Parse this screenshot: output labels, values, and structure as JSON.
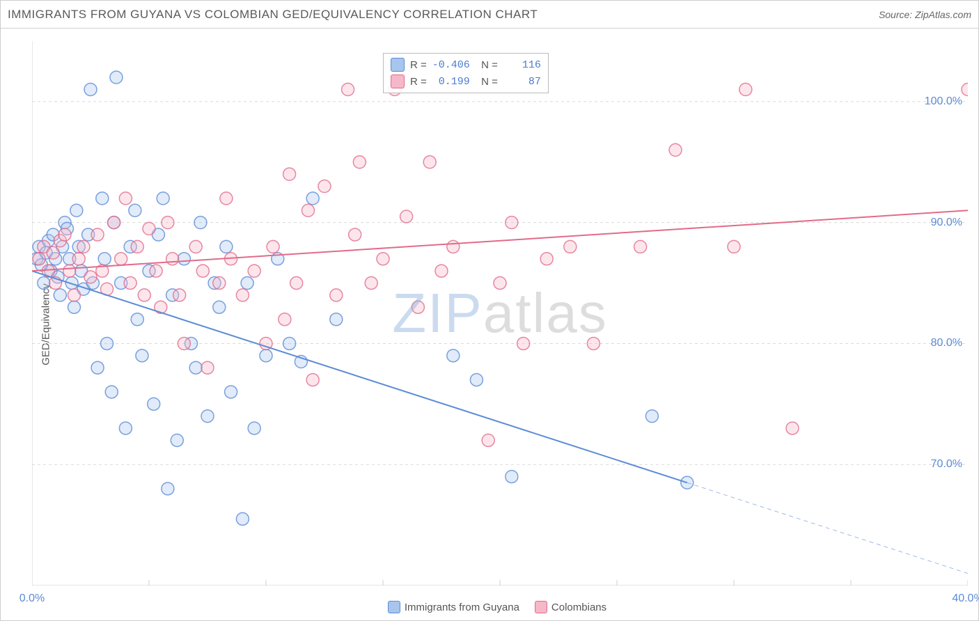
{
  "title": "IMMIGRANTS FROM GUYANA VS COLOMBIAN GED/EQUIVALENCY CORRELATION CHART",
  "source": "Source: ZipAtlas.com",
  "y_axis_label": "GED/Equivalency",
  "watermark": {
    "zip": "ZIP",
    "atlas": "atlas"
  },
  "chart": {
    "type": "scatter",
    "background_color": "#ffffff",
    "grid_color": "#d9d9d9",
    "axis_color": "#cfcfcf",
    "tick_label_color": "#5b8bd6",
    "axis_label_color": "#555555",
    "xlim": [
      0,
      40
    ],
    "ylim": [
      60,
      105
    ],
    "x_ticks": [
      0,
      40
    ],
    "x_tick_labels": [
      "0.0%",
      "40.0%"
    ],
    "x_minor_ticks": [
      5,
      10,
      15,
      20,
      25,
      30,
      35
    ],
    "y_ticks": [
      70,
      80,
      90,
      100
    ],
    "y_tick_labels": [
      "70.0%",
      "80.0%",
      "90.0%",
      "100.0%"
    ],
    "marker_radius": 9,
    "marker_fill_opacity": 0.35,
    "marker_stroke_width": 1.5,
    "line_width": 2,
    "font_size_title": 17,
    "font_size_labels": 15,
    "font_size_ticks": 16,
    "series": [
      {
        "id": "guyana",
        "label": "Immigrants from Guyana",
        "color": "#5b8bd6",
        "fill": "#a8c5ee",
        "stroke": "#5b8bd6",
        "R": "-0.406",
        "N": "116",
        "trend": {
          "x1": 0,
          "y1": 86,
          "x2": 28,
          "y2": 68.5,
          "dash_x2": 40,
          "dash_y2": 61
        },
        "points": [
          [
            0.2,
            87
          ],
          [
            0.3,
            88
          ],
          [
            0.4,
            86.5
          ],
          [
            0.5,
            85
          ],
          [
            0.6,
            87.5
          ],
          [
            0.7,
            88.5
          ],
          [
            0.8,
            86
          ],
          [
            0.9,
            89
          ],
          [
            1.0,
            87
          ],
          [
            1.1,
            85.5
          ],
          [
            1.2,
            84
          ],
          [
            1.3,
            88
          ],
          [
            1.4,
            90
          ],
          [
            1.5,
            89.5
          ],
          [
            1.6,
            87
          ],
          [
            1.7,
            85
          ],
          [
            1.8,
            83
          ],
          [
            1.9,
            91
          ],
          [
            2.0,
            88
          ],
          [
            2.1,
            86
          ],
          [
            2.2,
            84.5
          ],
          [
            2.4,
            89
          ],
          [
            2.5,
            101
          ],
          [
            2.6,
            85
          ],
          [
            2.8,
            78
          ],
          [
            3.0,
            92
          ],
          [
            3.1,
            87
          ],
          [
            3.2,
            80
          ],
          [
            3.4,
            76
          ],
          [
            3.5,
            90
          ],
          [
            3.6,
            102
          ],
          [
            3.8,
            85
          ],
          [
            4.0,
            73
          ],
          [
            4.2,
            88
          ],
          [
            4.4,
            91
          ],
          [
            4.5,
            82
          ],
          [
            4.7,
            79
          ],
          [
            5.0,
            86
          ],
          [
            5.2,
            75
          ],
          [
            5.4,
            89
          ],
          [
            5.6,
            92
          ],
          [
            5.8,
            68
          ],
          [
            6.0,
            84
          ],
          [
            6.2,
            72
          ],
          [
            6.5,
            87
          ],
          [
            6.8,
            80
          ],
          [
            7.0,
            78
          ],
          [
            7.2,
            90
          ],
          [
            7.5,
            74
          ],
          [
            7.8,
            85
          ],
          [
            8.0,
            83
          ],
          [
            8.3,
            88
          ],
          [
            8.5,
            76
          ],
          [
            9.0,
            65.5
          ],
          [
            9.2,
            85
          ],
          [
            9.5,
            73
          ],
          [
            10.0,
            79
          ],
          [
            10.5,
            87
          ],
          [
            11.0,
            80
          ],
          [
            11.5,
            78.5
          ],
          [
            12.0,
            92
          ],
          [
            13.0,
            82
          ],
          [
            18.0,
            79
          ],
          [
            19.0,
            77
          ],
          [
            20.5,
            69
          ],
          [
            26.5,
            74
          ],
          [
            28.0,
            68.5
          ]
        ]
      },
      {
        "id": "colombians",
        "label": "Colombians",
        "color": "#e26a8a",
        "fill": "#f5b8c9",
        "stroke": "#e26a8a",
        "R": "0.199",
        "N": "87",
        "trend": {
          "x1": 0,
          "y1": 86,
          "x2": 40,
          "y2": 91
        },
        "points": [
          [
            0.3,
            87
          ],
          [
            0.5,
            88
          ],
          [
            0.7,
            86
          ],
          [
            0.9,
            87.5
          ],
          [
            1.0,
            85
          ],
          [
            1.2,
            88.5
          ],
          [
            1.4,
            89
          ],
          [
            1.6,
            86
          ],
          [
            1.8,
            84
          ],
          [
            2.0,
            87
          ],
          [
            2.2,
            88
          ],
          [
            2.5,
            85.5
          ],
          [
            2.8,
            89
          ],
          [
            3.0,
            86
          ],
          [
            3.2,
            84.5
          ],
          [
            3.5,
            90
          ],
          [
            3.8,
            87
          ],
          [
            4.0,
            92
          ],
          [
            4.2,
            85
          ],
          [
            4.5,
            88
          ],
          [
            4.8,
            84
          ],
          [
            5.0,
            89.5
          ],
          [
            5.3,
            86
          ],
          [
            5.5,
            83
          ],
          [
            5.8,
            90
          ],
          [
            6.0,
            87
          ],
          [
            6.3,
            84
          ],
          [
            6.5,
            80
          ],
          [
            7.0,
            88
          ],
          [
            7.3,
            86
          ],
          [
            7.5,
            78
          ],
          [
            8.0,
            85
          ],
          [
            8.3,
            92
          ],
          [
            8.5,
            87
          ],
          [
            9.0,
            84
          ],
          [
            9.5,
            86
          ],
          [
            10.0,
            80
          ],
          [
            10.3,
            88
          ],
          [
            10.8,
            82
          ],
          [
            11.0,
            94
          ],
          [
            11.3,
            85
          ],
          [
            11.8,
            91
          ],
          [
            12.0,
            77
          ],
          [
            12.5,
            93
          ],
          [
            13.0,
            84
          ],
          [
            13.5,
            101
          ],
          [
            13.8,
            89
          ],
          [
            14.0,
            95
          ],
          [
            14.5,
            85
          ],
          [
            15.0,
            87
          ],
          [
            15.5,
            101
          ],
          [
            16.0,
            90.5
          ],
          [
            16.5,
            83
          ],
          [
            17.0,
            95
          ],
          [
            17.5,
            86
          ],
          [
            18.0,
            88
          ],
          [
            19.5,
            72
          ],
          [
            20.0,
            85
          ],
          [
            20.5,
            90
          ],
          [
            21.0,
            80
          ],
          [
            22.0,
            87
          ],
          [
            23.0,
            88
          ],
          [
            24.0,
            80
          ],
          [
            26.0,
            88
          ],
          [
            27.5,
            96
          ],
          [
            30.0,
            88
          ],
          [
            30.5,
            101
          ],
          [
            32.5,
            73
          ],
          [
            40.0,
            101
          ]
        ]
      }
    ]
  },
  "stats_box": {
    "rows": [
      {
        "sw_fill": "#a8c5ee",
        "sw_stroke": "#5b8bd6",
        "R": "-0.406",
        "N": "116"
      },
      {
        "sw_fill": "#f5b8c9",
        "sw_stroke": "#e26a8a",
        "R": "0.199",
        "N": "87"
      }
    ]
  },
  "bottom_legend": [
    {
      "sw_fill": "#a8c5ee",
      "sw_stroke": "#5b8bd6",
      "label": "Immigrants from Guyana"
    },
    {
      "sw_fill": "#f5b8c9",
      "sw_stroke": "#e26a8a",
      "label": "Colombians"
    }
  ]
}
